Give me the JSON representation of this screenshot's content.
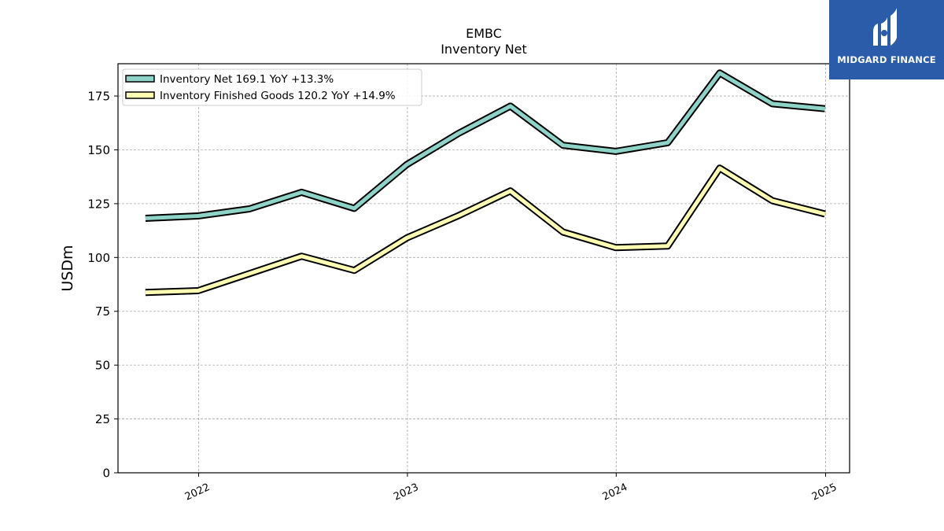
{
  "chart_data": {
    "type": "line",
    "title": "EMBC",
    "subtitle": "Inventory Net",
    "ylabel": "USDm",
    "xlabel": "",
    "ylim": [
      0,
      190
    ],
    "yticks": [
      0,
      25,
      50,
      75,
      100,
      125,
      150,
      175
    ],
    "xlim": [
      "2021-08-13",
      "2025-02-12"
    ],
    "xticks": [
      {
        "date": "2022-01-01",
        "label": "2022"
      },
      {
        "date": "2023-01-01",
        "label": "2023"
      },
      {
        "date": "2024-01-01",
        "label": "2024"
      },
      {
        "date": "2025-01-01",
        "label": "2025"
      }
    ],
    "grid": true,
    "legend_position": "top-left",
    "x": [
      "2021-09-30",
      "2021-12-31",
      "2022-03-31",
      "2022-06-30",
      "2022-09-30",
      "2022-12-31",
      "2023-03-31",
      "2023-06-30",
      "2023-09-30",
      "2023-12-31",
      "2024-03-31",
      "2024-06-30",
      "2024-09-30",
      "2024-12-31"
    ],
    "series": [
      {
        "name": "Inventory Net  169.1 YoY +13.3%",
        "color": "#8dd3c7",
        "values": [
          118.2,
          119.3,
          122.6,
          130.3,
          122.8,
          143.2,
          157.6,
          170.3,
          152.1,
          149.3,
          153.3,
          185.7,
          171.4,
          169.1
        ]
      },
      {
        "name": "Inventory Finished Goods  120.2 YoY +14.9%",
        "color": "#ffffb3",
        "values": [
          83.8,
          84.6,
          92.5,
          100.6,
          94.0,
          109.1,
          119.4,
          130.9,
          111.8,
          104.6,
          105.3,
          141.5,
          126.4,
          120.2
        ]
      }
    ]
  },
  "logo": {
    "text": "MIDGARD FINANCE",
    "background": "#2a5caa"
  }
}
